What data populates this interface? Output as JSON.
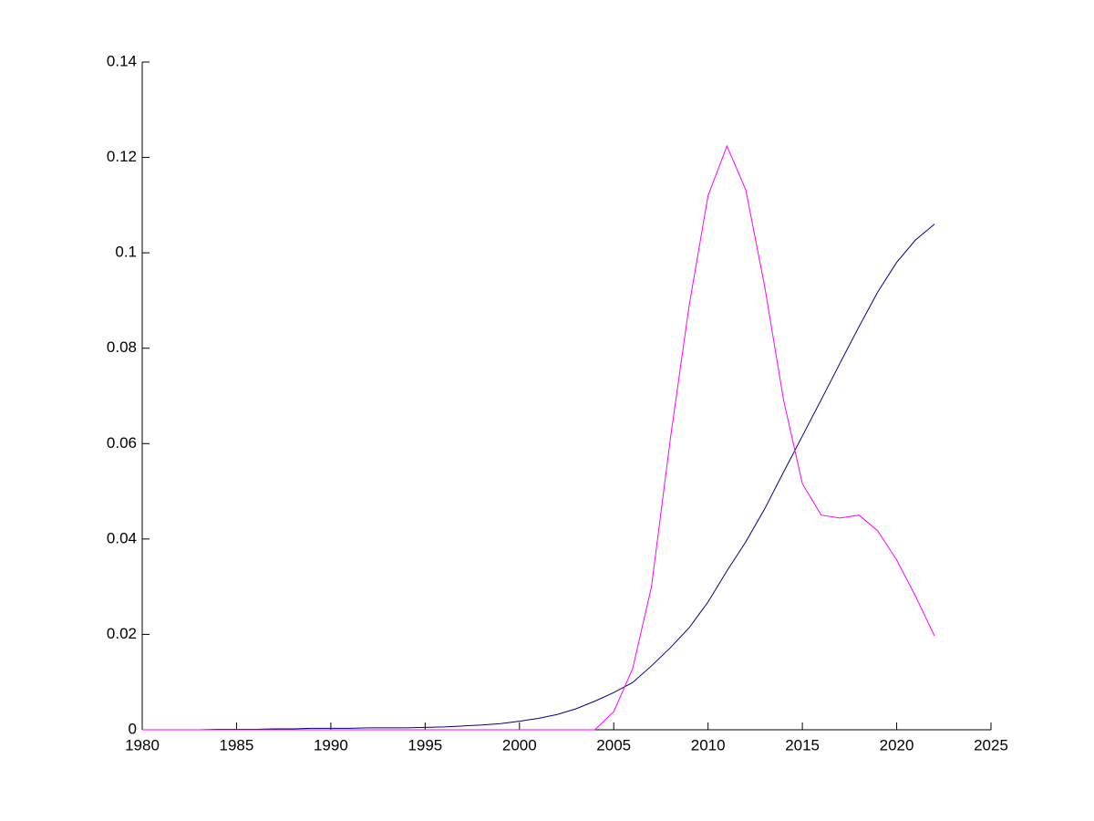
{
  "chart_data": {
    "type": "line",
    "x": [
      1980,
      1981,
      1982,
      1983,
      1984,
      1985,
      1986,
      1987,
      1988,
      1989,
      1990,
      1991,
      1992,
      1993,
      1994,
      1995,
      1996,
      1997,
      1998,
      1999,
      2000,
      2001,
      2002,
      2003,
      2004,
      2005,
      2006,
      2007,
      2008,
      2009,
      2010,
      2011,
      2012,
      2013,
      2014,
      2015,
      2016,
      2017,
      2018,
      2019,
      2020,
      2021,
      2022
    ],
    "series": [
      {
        "color": "#00007f",
        "values": [
          0,
          0,
          0,
          0,
          0.0001,
          0.0001,
          0.0001,
          0.0002,
          0.0002,
          0.0003,
          0.0003,
          0.0003,
          0.0004,
          0.0004,
          0.0004,
          0.0005,
          0.0006,
          0.0008,
          0.001,
          0.0013,
          0.0018,
          0.0024,
          0.0032,
          0.0044,
          0.006,
          0.0078,
          0.0099,
          0.0134,
          0.0172,
          0.0214,
          0.0268,
          0.0333,
          0.0394,
          0.0463,
          0.054,
          0.0616,
          0.0692,
          0.0769,
          0.0845,
          0.0918,
          0.098,
          0.1027,
          0.106
        ]
      },
      {
        "color": "#ff00ff",
        "values": [
          0,
          0,
          0,
          0,
          0,
          0,
          0,
          0,
          0,
          0,
          0,
          0,
          0,
          0,
          0,
          0,
          0,
          0,
          0,
          0,
          0,
          0,
          0,
          0,
          0,
          0.0038,
          0.0128,
          0.03,
          0.061,
          0.089,
          0.112,
          0.1224,
          0.1132,
          0.093,
          0.0692,
          0.0516,
          0.045,
          0.0444,
          0.045,
          0.0417,
          0.0356,
          0.028,
          0.0197
        ]
      }
    ],
    "xlim": [
      1980,
      2025
    ],
    "xticks": [
      1980,
      1985,
      1990,
      1995,
      2000,
      2005,
      2010,
      2015,
      2020,
      2025
    ],
    "ylim": [
      0,
      0.14
    ],
    "yticks": [
      0,
      0.02,
      0.04,
      0.06,
      0.08,
      0.1,
      0.12,
      0.14
    ]
  }
}
